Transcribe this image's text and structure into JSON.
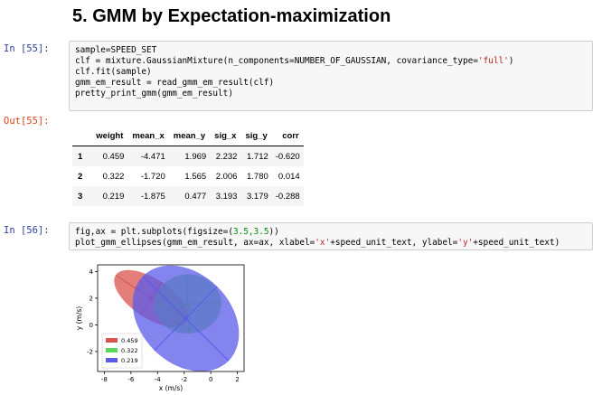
{
  "heading": "5. GMM by Expectation-maximization",
  "cells": {
    "in55": {
      "prompt": "In  [55]:",
      "lines": [
        "sample=SPEED_SET",
        "clf = mixture.GaussianMixture(n_components=NUMBER_OF_GAUSSIAN, covariance_type=",
        "'full'",
        ")",
        "clf.fit(sample)",
        "gmm_em_result = read_gmm_em_result(clf)",
        "pretty_print_gmm(gmm_em_result)"
      ]
    },
    "out55": {
      "prompt": "Out[55]:"
    },
    "in56": {
      "prompt": "In  [56]:",
      "line1_a": "fig,ax = plt.subplots(figsize=(",
      "line1_n": "3.5,3.5",
      "line1_b": "))",
      "line2_a": "plot_gmm_ellipses(gmm_em_result, ax=ax, xlabel=",
      "line2_s1": "'x'",
      "line2_b": "+speed_unit_text, ylabel=",
      "line2_s2": "'y'",
      "line2_c": "+speed_unit_text)"
    }
  },
  "table": {
    "columns": [
      "",
      "weight",
      "mean_x",
      "mean_y",
      "sig_x",
      "sig_y",
      "corr"
    ],
    "rows": [
      [
        "1",
        "0.459",
        "-4.471",
        "1.969",
        "2.232",
        "1.712",
        "-0.620"
      ],
      [
        "2",
        "0.322",
        "-1.720",
        "1.565",
        "2.006",
        "1.780",
        "0.014"
      ],
      [
        "3",
        "0.219",
        "-1.875",
        "0.477",
        "3.193",
        "3.179",
        "-0.288"
      ]
    ]
  },
  "chart_data": {
    "type": "scatter",
    "title": "",
    "xlabel": "x (m/s)",
    "ylabel": "y (m/s)",
    "xlim": [
      -8.5,
      2.5
    ],
    "ylim": [
      -3.5,
      4.5
    ],
    "xticks": [
      "-8",
      "-6",
      "-4",
      "-2",
      "0",
      "2"
    ],
    "yticks": [
      "-2",
      "0",
      "2",
      "4"
    ],
    "grid": false,
    "legend_position": "lower-left",
    "series": [
      {
        "name": "0.459",
        "color": "#d9534f",
        "center": [
          -4.471,
          1.969
        ],
        "sig": [
          2.232,
          1.712
        ],
        "corr": -0.62
      },
      {
        "name": "0.322",
        "color": "#5cd65c",
        "center": [
          -1.72,
          1.565
        ],
        "sig": [
          2.006,
          1.78
        ],
        "corr": 0.014
      },
      {
        "name": "0.219",
        "color": "#5b5bea",
        "center": [
          -1.875,
          0.477
        ],
        "sig": [
          3.193,
          3.179
        ],
        "corr": -0.288
      }
    ]
  }
}
